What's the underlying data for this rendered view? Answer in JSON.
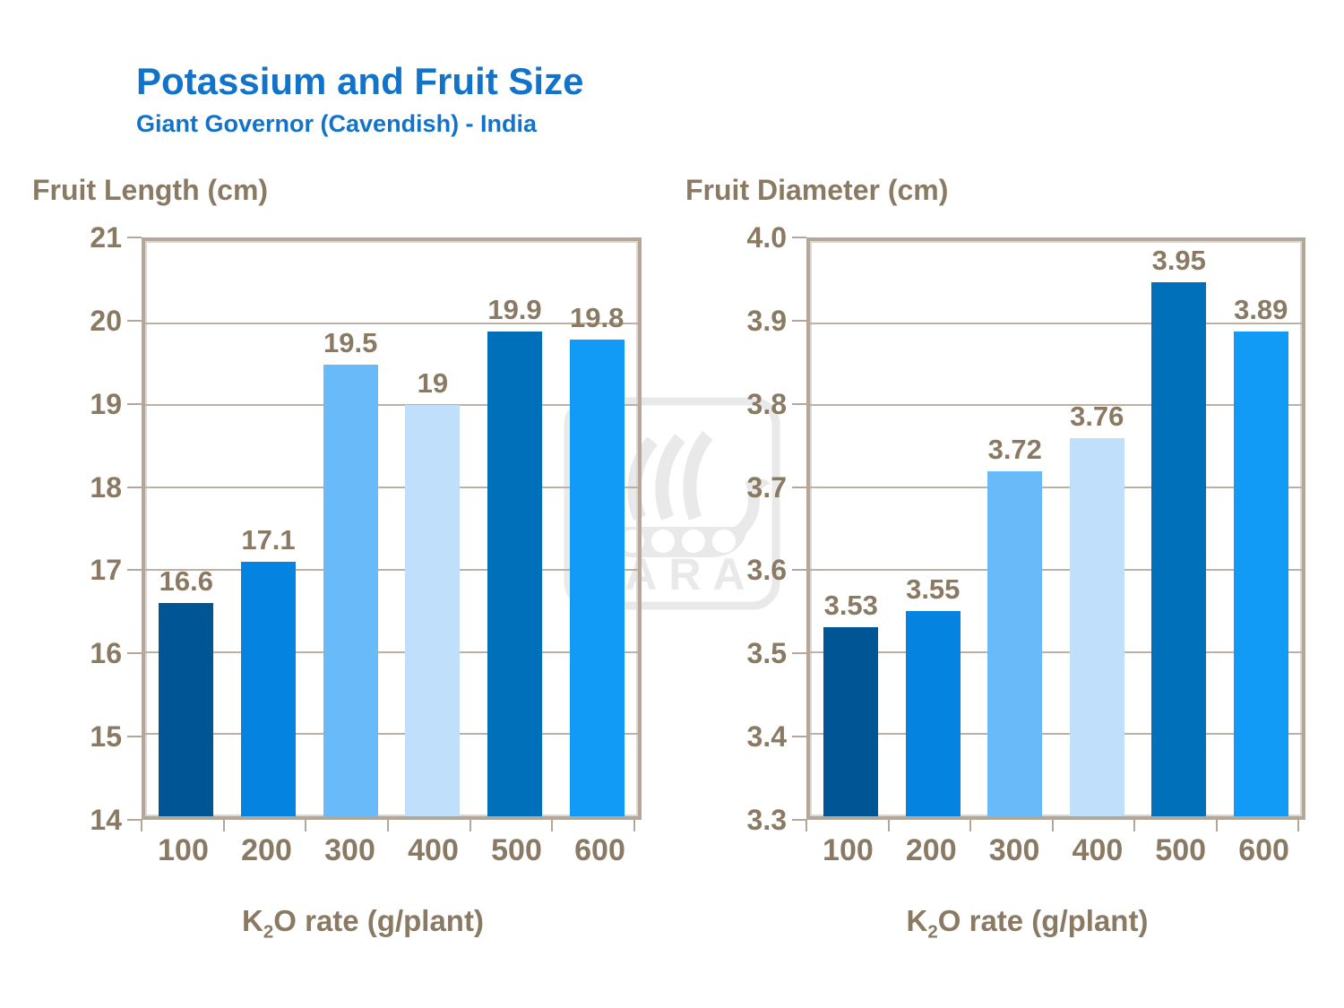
{
  "header": {
    "title": "Potassium and Fruit Size",
    "subtitle": "Giant Governor (Cavendish) - India"
  },
  "watermark": {
    "name": "yara-logo",
    "text": "YARA"
  },
  "colors": {
    "title_blue": "#1173c9",
    "label_brown": "#8a7a64",
    "axis_tan": "#b3a79a",
    "gridline": "#bdb1a4",
    "watermark_gray": "#e9e9e9",
    "bars": [
      "#005694",
      "#0484e0",
      "#69baf8",
      "#bfdffb",
      "#0070ba",
      "#129af7"
    ]
  },
  "chart_data": [
    {
      "type": "bar",
      "title": "Fruit Length (cm)",
      "ylabel": "Fruit Length (cm)",
      "xlabel": "K2O rate (g/plant)",
      "xlabel_parts": {
        "base": "K",
        "sub": "2",
        "rest": "O rate (g/plant)"
      },
      "categories": [
        "100",
        "200",
        "300",
        "400",
        "500",
        "600"
      ],
      "values": [
        16.6,
        17.1,
        19.5,
        19,
        19.9,
        19.8
      ],
      "labels": [
        "16.6",
        "17.1",
        "19.5",
        "19",
        "19.9",
        "19.8"
      ],
      "ylim": [
        14,
        21
      ],
      "yticks": [
        "21",
        "20",
        "19",
        "18",
        "17",
        "16",
        "15",
        "14"
      ],
      "grid": true,
      "legend": false
    },
    {
      "type": "bar",
      "title": "Fruit Diameter (cm)",
      "ylabel": "Fruit Diameter (cm)",
      "xlabel": "K2O rate (g/plant)",
      "xlabel_parts": {
        "base": "K",
        "sub": "2",
        "rest": "O rate (g/plant)"
      },
      "categories": [
        "100",
        "200",
        "300",
        "400",
        "500",
        "600"
      ],
      "values": [
        3.53,
        3.55,
        3.72,
        3.76,
        3.95,
        3.89
      ],
      "labels": [
        "3.53",
        "3.55",
        "3.72",
        "3.76",
        "3.95",
        "3.89"
      ],
      "ylim": [
        3.3,
        4.0
      ],
      "yticks": [
        "4.0",
        "3.9",
        "3.8",
        "3.7",
        "3.6",
        "3.5",
        "3.4",
        "3.3"
      ],
      "grid": true,
      "legend": false
    }
  ]
}
